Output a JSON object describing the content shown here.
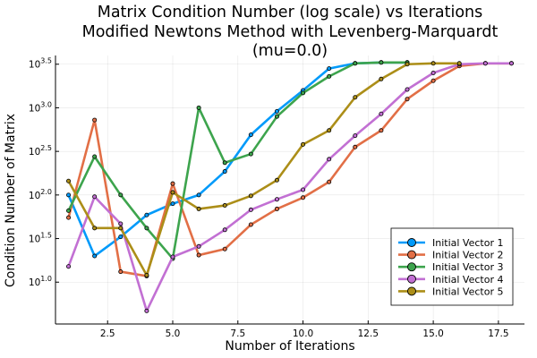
{
  "chart_data": {
    "type": "line",
    "title_lines": [
      "Matrix Condition Number (log scale) vs Iterations",
      "Modified Newtons Method with Levenberg-Marquardt",
      "(mu=0.0)"
    ],
    "xlabel": "Number of Iterations",
    "ylabel": "Condition Number of Matrix",
    "xlim": [
      0.5,
      18.5
    ],
    "ylim": [
      0.52,
      3.6
    ],
    "y_scale": "log10",
    "grid": true,
    "legend_position": "bottom-right",
    "x_ticks": [
      {
        "value": 2.5,
        "label": "2.5"
      },
      {
        "value": 5.0,
        "label": "5.0"
      },
      {
        "value": 7.5,
        "label": "7.5"
      },
      {
        "value": 10.0,
        "label": "10.0"
      },
      {
        "value": 12.5,
        "label": "12.5"
      },
      {
        "value": 15.0,
        "label": "15.0"
      },
      {
        "value": 17.5,
        "label": "17.5"
      }
    ],
    "y_ticks": [
      {
        "value": 1.0,
        "base": "10",
        "exponent": "1.0"
      },
      {
        "value": 1.5,
        "base": "10",
        "exponent": "1.5"
      },
      {
        "value": 2.0,
        "base": "10",
        "exponent": "2.0"
      },
      {
        "value": 2.5,
        "base": "10",
        "exponent": "2.5"
      },
      {
        "value": 3.0,
        "base": "10",
        "exponent": "3.0"
      },
      {
        "value": 3.5,
        "base": "10",
        "exponent": "3.5"
      }
    ],
    "series": [
      {
        "name": "Initial Vector 1",
        "color": "#009AFA",
        "x": [
          1,
          2,
          3,
          4,
          5,
          6,
          7,
          8,
          9,
          10,
          11,
          12,
          13,
          14
        ],
        "y": [
          2.0,
          1.3,
          1.52,
          1.77,
          1.9,
          2.0,
          2.27,
          2.69,
          2.96,
          3.2,
          3.45,
          3.51,
          3.52,
          3.52
        ]
      },
      {
        "name": "Initial Vector 2",
        "color": "#E26F46",
        "x": [
          1,
          2,
          3,
          4,
          5,
          6,
          7,
          8,
          9,
          10,
          11,
          12,
          13,
          14,
          15,
          16,
          17,
          18
        ],
        "y": [
          1.74,
          2.86,
          1.12,
          1.07,
          2.13,
          1.31,
          1.38,
          1.66,
          1.84,
          1.97,
          2.15,
          2.55,
          2.74,
          3.1,
          3.31,
          3.48,
          3.51,
          3.51
        ]
      },
      {
        "name": "Initial Vector 3",
        "color": "#3DA44D",
        "x": [
          1,
          2,
          3,
          4,
          5,
          6,
          7,
          8,
          9,
          10,
          11,
          12,
          13,
          14
        ],
        "y": [
          1.82,
          2.44,
          2.0,
          1.62,
          1.27,
          3.0,
          2.37,
          2.47,
          2.9,
          3.17,
          3.36,
          3.51,
          3.52,
          3.52
        ]
      },
      {
        "name": "Initial Vector 4",
        "color": "#C270D3",
        "x": [
          1,
          2,
          3,
          4,
          5,
          6,
          7,
          8,
          9,
          10,
          11,
          12,
          13,
          14,
          15,
          16,
          17,
          18
        ],
        "y": [
          1.18,
          1.98,
          1.67,
          0.67,
          1.29,
          1.41,
          1.6,
          1.83,
          1.95,
          2.06,
          2.41,
          2.68,
          2.93,
          3.21,
          3.4,
          3.5,
          3.51,
          3.51
        ]
      },
      {
        "name": "Initial Vector 5",
        "color": "#AC8E18",
        "x": [
          1,
          2,
          3,
          4,
          5,
          6,
          7,
          8,
          9,
          10,
          11,
          12,
          13,
          14,
          15,
          16
        ],
        "y": [
          2.16,
          1.62,
          1.62,
          1.08,
          2.03,
          1.84,
          1.88,
          1.99,
          2.17,
          2.58,
          2.74,
          3.12,
          3.33,
          3.5,
          3.51,
          3.51
        ]
      }
    ]
  }
}
